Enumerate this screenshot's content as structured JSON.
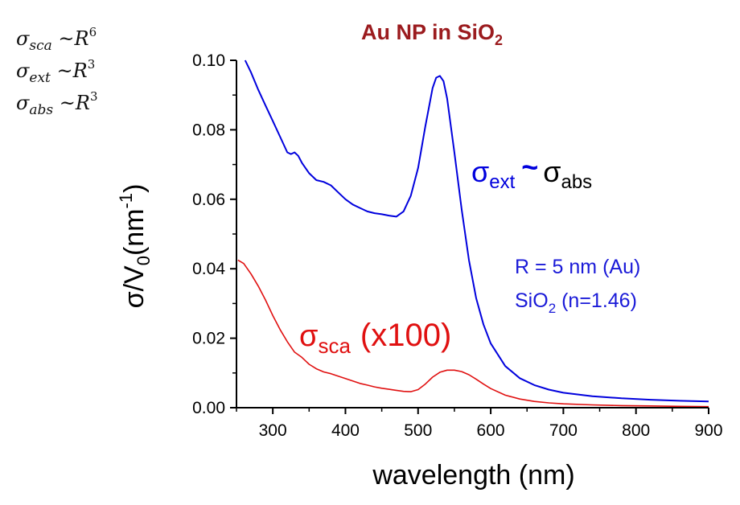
{
  "chart_data": {
    "type": "line",
    "title_main": "Au NP in SiO",
    "title_sub": "2",
    "xlabel": "wavelength (nm)",
    "ylabel_main": "σ/V",
    "ylabel_sub": "0",
    "ylabel_unit_open": "(nm",
    "ylabel_unit_sup": "-1",
    "ylabel_unit_close": ")",
    "xlim": [
      250,
      900
    ],
    "ylim": [
      0,
      0.1
    ],
    "xticks": [
      300,
      400,
      500,
      600,
      700,
      800,
      900
    ],
    "yticks": [
      0.0,
      0.02,
      0.04,
      0.06,
      0.08,
      0.1
    ],
    "xtick_labels": [
      "300",
      "400",
      "500",
      "600",
      "700",
      "800",
      "900"
    ],
    "ytick_labels": [
      "0.00",
      "0.02",
      "0.04",
      "0.06",
      "0.08",
      "0.10"
    ],
    "series": [
      {
        "color": "#0000dd",
        "x": [
          262,
          270,
          280,
          290,
          300,
          310,
          320,
          325,
          330,
          335,
          340,
          350,
          360,
          370,
          380,
          390,
          400,
          410,
          420,
          430,
          440,
          450,
          460,
          470,
          480,
          490,
          500,
          510,
          520,
          525,
          530,
          535,
          540,
          550,
          560,
          570,
          580,
          590,
          600,
          620,
          640,
          660,
          680,
          700,
          740,
          780,
          820,
          860,
          900
        ],
        "y": [
          0.1,
          0.0965,
          0.0915,
          0.087,
          0.0825,
          0.078,
          0.0735,
          0.073,
          0.0735,
          0.0725,
          0.0705,
          0.0675,
          0.0655,
          0.065,
          0.064,
          0.062,
          0.06,
          0.0585,
          0.0575,
          0.0565,
          0.056,
          0.0557,
          0.0553,
          0.055,
          0.0565,
          0.061,
          0.069,
          0.081,
          0.092,
          0.095,
          0.0955,
          0.094,
          0.089,
          0.0735,
          0.057,
          0.0425,
          0.0315,
          0.024,
          0.0185,
          0.012,
          0.0085,
          0.0065,
          0.0052,
          0.0043,
          0.0033,
          0.0027,
          0.0023,
          0.002,
          0.0018
        ]
      },
      {
        "color": "#e01010",
        "x": [
          252,
          260,
          270,
          280,
          290,
          300,
          310,
          320,
          330,
          340,
          350,
          360,
          370,
          380,
          390,
          400,
          410,
          420,
          430,
          440,
          450,
          460,
          470,
          480,
          490,
          500,
          510,
          520,
          530,
          540,
          550,
          560,
          570,
          580,
          590,
          600,
          620,
          640,
          660,
          680,
          700,
          740,
          780,
          820,
          860,
          900
        ],
        "y": [
          0.0425,
          0.0415,
          0.0385,
          0.035,
          0.031,
          0.0265,
          0.0225,
          0.019,
          0.016,
          0.0145,
          0.0125,
          0.0112,
          0.0103,
          0.0098,
          0.0091,
          0.0084,
          0.0077,
          0.007,
          0.0065,
          0.006,
          0.0056,
          0.0053,
          0.005,
          0.0047,
          0.0046,
          0.0052,
          0.0068,
          0.0088,
          0.0102,
          0.0108,
          0.0108,
          0.0104,
          0.0095,
          0.0082,
          0.0068,
          0.0055,
          0.0036,
          0.0025,
          0.0018,
          0.0014,
          0.0011,
          0.0008,
          0.0006,
          0.0005,
          0.0004,
          0.0003
        ]
      }
    ],
    "annotations": {
      "ext_sigma": "σ",
      "ext_sub": "ext",
      "ext_tilde": "~",
      "abs_sigma": "σ",
      "abs_sub": "abs",
      "sca_sigma": "σ",
      "sca_sub": "sca",
      "sca_factor": "(x100)",
      "params_line1": "R = 5 nm (Au)",
      "params_line2_a": "SiO",
      "params_line2_sub": "2",
      "params_line2_b": " (n=1.46)",
      "ext_color": "#0000dd",
      "abs_color": "#000000",
      "sca_color": "#e01010",
      "params_color": "#1a1ad8"
    },
    "scaling_laws": [
      {
        "sigma": "σ",
        "sub": "sca",
        "rel": " ~",
        "r": "R",
        "exp": "6"
      },
      {
        "sigma": "σ",
        "sub": "ext",
        "rel": " ~",
        "r": "R",
        "exp": "3"
      },
      {
        "sigma": "σ",
        "sub": "abs",
        "rel": " ~",
        "r": "R",
        "exp": "3"
      }
    ]
  }
}
